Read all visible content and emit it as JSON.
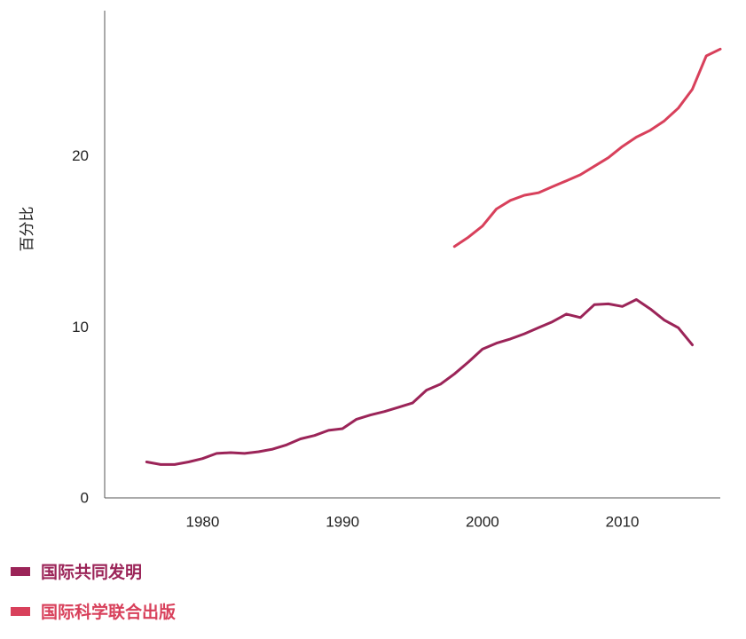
{
  "chart_data": {
    "type": "line",
    "title": "",
    "xlabel": "",
    "ylabel": "百分比",
    "xlim": [
      1973,
      2017
    ],
    "ylim": [
      0,
      28.5
    ],
    "xticks": [
      1980,
      1990,
      2000,
      2010
    ],
    "yticks": [
      0,
      10,
      20
    ],
    "grid": false,
    "legend_position": "bottom-left",
    "series": [
      {
        "name": "国际共同发明",
        "color": "#9b2458",
        "x": [
          1976,
          1977,
          1978,
          1979,
          1980,
          1981,
          1982,
          1983,
          1984,
          1985,
          1986,
          1987,
          1988,
          1989,
          1990,
          1991,
          1992,
          1993,
          1994,
          1995,
          1996,
          1997,
          1998,
          1999,
          2000,
          2001,
          2002,
          2003,
          2004,
          2005,
          2006,
          2007,
          2008,
          2009,
          2010,
          2011,
          2012,
          2013,
          2014,
          2015
        ],
        "y": [
          2.1,
          1.95,
          1.95,
          2.1,
          2.3,
          2.6,
          2.65,
          2.6,
          2.7,
          2.85,
          3.1,
          3.45,
          3.65,
          3.95,
          4.05,
          4.6,
          4.85,
          5.05,
          5.3,
          5.55,
          6.3,
          6.65,
          7.25,
          7.95,
          8.7,
          9.05,
          9.3,
          9.6,
          9.95,
          10.3,
          10.75,
          10.55,
          11.3,
          11.35,
          11.2,
          11.6,
          11.05,
          10.4,
          9.95,
          8.95
        ]
      },
      {
        "name": "国际科学联合出版",
        "color": "#d8405b",
        "x": [
          1998,
          1999,
          2000,
          2001,
          2002,
          2003,
          2004,
          2005,
          2006,
          2007,
          2008,
          2009,
          2010,
          2011,
          2012,
          2013,
          2014,
          2015,
          2016,
          2017
        ],
        "y": [
          14.7,
          15.25,
          15.9,
          16.9,
          17.4,
          17.7,
          17.85,
          18.2,
          18.55,
          18.9,
          19.4,
          19.9,
          20.55,
          21.1,
          21.5,
          22.05,
          22.8,
          23.9,
          25.85,
          26.25
        ]
      }
    ]
  }
}
